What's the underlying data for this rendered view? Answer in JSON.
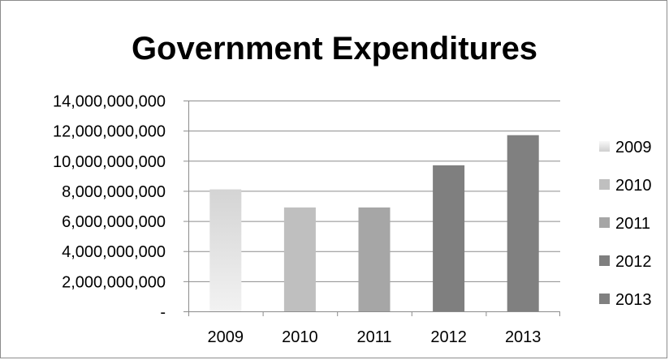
{
  "chart_data": {
    "type": "bar",
    "title": "Government Expenditures",
    "xlabel": "",
    "ylabel": "",
    "categories": [
      "2009",
      "2010",
      "2011",
      "2012",
      "2013"
    ],
    "values": [
      8100000000,
      6900000000,
      6900000000,
      9700000000,
      11700000000
    ],
    "ylim": [
      0,
      14000000000
    ],
    "yticks": [
      0,
      2000000000,
      4000000000,
      6000000000,
      8000000000,
      10000000000,
      12000000000,
      14000000000
    ],
    "ytick_labels": [
      "-",
      "2,000,000,000",
      "4,000,000,000",
      "6,000,000,000",
      "8,000,000,000",
      "10,000,000,000",
      "12,000,000,000",
      "14,000,000,000"
    ],
    "grid": true,
    "legend": {
      "position": "right",
      "entries": [
        "2009",
        "2010",
        "2011",
        "2012",
        "2013"
      ]
    },
    "colors": [
      "#ededed",
      "#bfbfbf",
      "#a6a6a6",
      "#7f7f7f",
      "#808080"
    ],
    "gradient_first_bar": true
  }
}
